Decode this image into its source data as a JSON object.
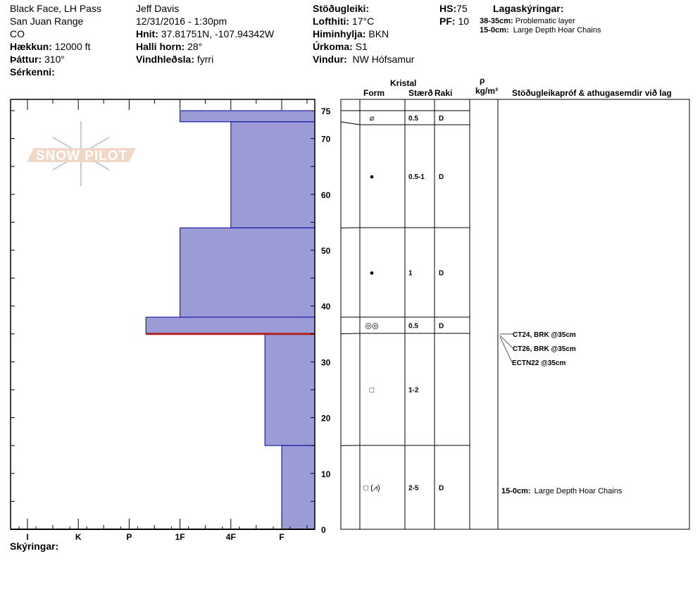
{
  "header": {
    "location": "Black Face, LH Pass",
    "range": "San Juan Range",
    "state": "CO",
    "elevation_label": "Hækkun:",
    "elevation": "12000 ft",
    "aspect_label": "Þáttur:",
    "aspect": "310°",
    "features_label": "Sérkenni:",
    "observer": "Jeff Davis",
    "datetime": "12/31/2016 - 1:30pm",
    "coords_label": "Hnit:",
    "coords": "37.81751N, -107.94342W",
    "slope_label": "Halli horn:",
    "slope": "28°",
    "wind_loading_label": "Vindhleðsla:",
    "wind_loading": "fyrri",
    "stability_label": "Stöðugleiki:",
    "air_temp_label": "Lofthiti:",
    "air_temp": "17°C",
    "sky_label": "Himinhylja:",
    "sky": "BKN",
    "precip_label": "Úrkoma:",
    "precip": "S1",
    "wind_label": "Vindur:",
    "wind": "NW Hófsamur",
    "hs_label": "HS:",
    "hs": "75",
    "pf_label": "PF:",
    "pf": "10",
    "layer_notes_label": "Lagaskýringar:",
    "layer_notes": [
      {
        "range": "38-35cm:",
        "text": "Problematic layer"
      },
      {
        "range": "15-0cm:",
        "text": "Large Depth Hoar Chains"
      }
    ]
  },
  "logo_text": "SNOW PILOT",
  "chart_data": {
    "type": "bar",
    "orientation": "horizontal",
    "xlabel": "",
    "ylabel": "",
    "hardness_ticks": [
      "I",
      "K",
      "P",
      "1F",
      "4F",
      "F"
    ],
    "depth_ticks": [
      0,
      10,
      20,
      30,
      40,
      50,
      60,
      70,
      75
    ],
    "ylim": [
      0,
      75
    ],
    "layers": [
      {
        "top": 75,
        "bottom": 73,
        "hardness": 3.0
      },
      {
        "top": 73,
        "bottom": 54,
        "hardness": 4.0
      },
      {
        "top": 54,
        "bottom": 38,
        "hardness": 3.0
      },
      {
        "top": 38,
        "bottom": 35,
        "hardness": 2.33
      },
      {
        "top": 35,
        "bottom": 15,
        "hardness": 4.67
      },
      {
        "top": 15,
        "bottom": 0,
        "hardness": 5.0
      }
    ],
    "problem_layer_depth": 35,
    "colors": {
      "fill": "#9b9bd5",
      "stroke": "#0000a0",
      "problem": "#b22222"
    }
  },
  "table": {
    "header_crystal": "Kristal",
    "header_form": "Form",
    "header_size": "Stærð",
    "header_moisture": "Raki",
    "header_rho": "ρ",
    "header_density": "kg/m³",
    "header_comments": "Stöðugleikapróf & athugasemdir við lag",
    "rows": [
      {
        "form": "⌀",
        "size": "0.5",
        "moisture": "D"
      },
      {
        "form": "●",
        "size": "0.5-1",
        "moisture": "D"
      },
      {
        "form": "●",
        "size": "1",
        "moisture": "D"
      },
      {
        "form": "◎◎",
        "size": "0.5",
        "moisture": "D"
      },
      {
        "form": "□",
        "size": "1-2",
        "moisture": ""
      },
      {
        "form": "□ (⩘)",
        "size": "2-5",
        "moisture": "D"
      }
    ],
    "tests": [
      "CT24, BRK @35cm",
      "CT26, BRK @35cm",
      "ECTN22 @35cm"
    ],
    "comment_range": "15-0cm:",
    "comment_text": "Large Depth Hoar Chains"
  },
  "legend_label": "Skýringar:"
}
